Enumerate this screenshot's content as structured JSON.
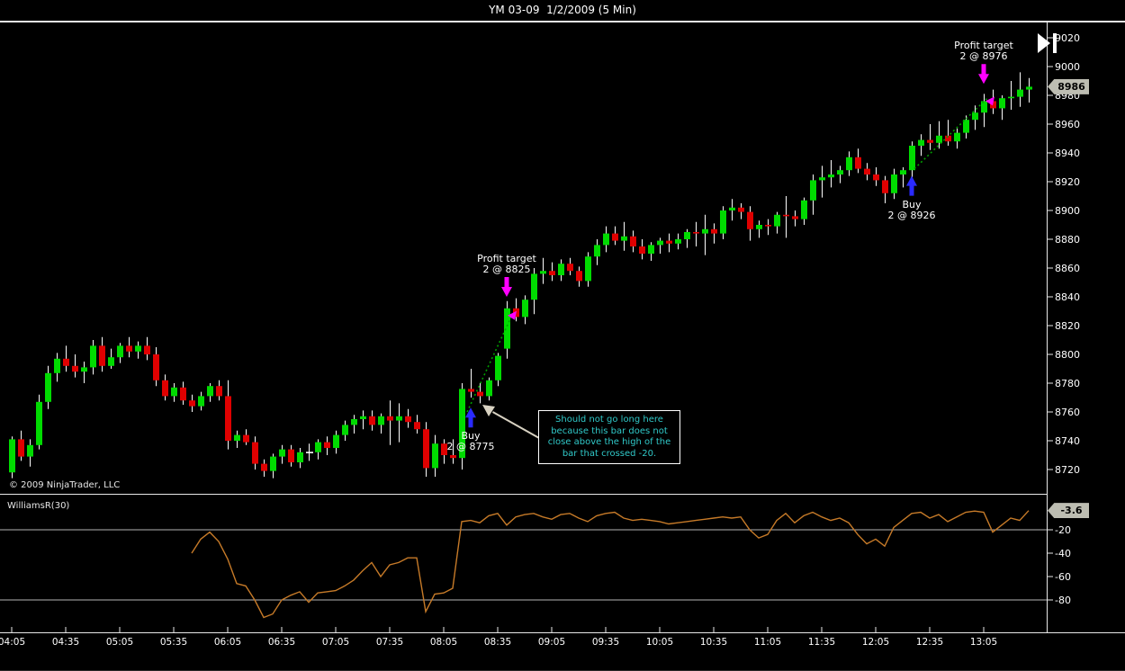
{
  "title_bar": {
    "title": "YM 03-09  1/2/2009 (5 Min)"
  },
  "colors": {
    "background": "#000000",
    "up_candle": "#00db00",
    "down_candle": "#e00000",
    "wick": "#ffffff",
    "axis": "#e8e8e8",
    "grid": "#b4b4b4",
    "indicator_line": "#c67a28",
    "trend_line": "#00a000",
    "buy_arrow": "#2a2aff",
    "target_arrow": "#ff00ff",
    "note_text": "#30c9c9",
    "note_arrow": "#d8d2c2",
    "badge_bg": "#bdbdb2"
  },
  "chart_data": {
    "type": "candlestick",
    "title": "YM 03-09  1/2/2009 (5 Min)",
    "symbol": "YM 03-09",
    "date": "1/2/2009",
    "interval": "5 Min",
    "start_time": "04:05",
    "interval_minutes": 5,
    "price_ylim": [
      8720,
      9020
    ],
    "price_tick_step": 20,
    "last_price": 8986,
    "x_axis_labels": [
      "04:05",
      "04:35",
      "05:05",
      "05:35",
      "06:05",
      "06:35",
      "07:05",
      "07:35",
      "08:05",
      "08:35",
      "09:05",
      "09:35",
      "10:05",
      "10:35",
      "11:05",
      "11:35",
      "12:05",
      "12:35",
      "13:05"
    ],
    "x_label_every_n_bars": 6,
    "ohlc": [
      [
        8718,
        8743,
        8714,
        8741
      ],
      [
        8741,
        8747,
        8726,
        8729
      ],
      [
        8729,
        8741,
        8722,
        8737
      ],
      [
        8737,
        8772,
        8734,
        8767
      ],
      [
        8767,
        8792,
        8762,
        8787
      ],
      [
        8787,
        8801,
        8781,
        8797
      ],
      [
        8797,
        8806,
        8788,
        8792
      ],
      [
        8792,
        8800,
        8784,
        8788
      ],
      [
        8788,
        8795,
        8780,
        8791
      ],
      [
        8791,
        8810,
        8786,
        8806
      ],
      [
        8806,
        8812,
        8788,
        8792
      ],
      [
        8792,
        8804,
        8790,
        8798
      ],
      [
        8798,
        8808,
        8794,
        8806
      ],
      [
        8806,
        8812,
        8798,
        8802
      ],
      [
        8802,
        8809,
        8797,
        8806
      ],
      [
        8806,
        8812,
        8796,
        8800
      ],
      [
        8800,
        8805,
        8778,
        8782
      ],
      [
        8782,
        8786,
        8768,
        8771
      ],
      [
        8771,
        8780,
        8767,
        8777
      ],
      [
        8777,
        8781,
        8765,
        8768
      ],
      [
        8768,
        8772,
        8760,
        8764
      ],
      [
        8764,
        8774,
        8761,
        8771
      ],
      [
        8771,
        8780,
        8767,
        8778
      ],
      [
        8778,
        8782,
        8768,
        8771
      ],
      [
        8771,
        8782,
        8734,
        8740
      ],
      [
        8740,
        8747,
        8735,
        8744
      ],
      [
        8744,
        8748,
        8737,
        8739
      ],
      [
        8739,
        8743,
        8720,
        8724
      ],
      [
        8724,
        8727,
        8715,
        8719
      ],
      [
        8719,
        8731,
        8714,
        8729
      ],
      [
        8729,
        8737,
        8724,
        8734
      ],
      [
        8734,
        8737,
        8722,
        8725
      ],
      [
        8725,
        8735,
        8721,
        8732
      ],
      [
        8732,
        8738,
        8726,
        8732
      ],
      [
        8732,
        8741,
        8727,
        8739
      ],
      [
        8739,
        8743,
        8730,
        8735
      ],
      [
        8735,
        8747,
        8731,
        8744
      ],
      [
        8744,
        8754,
        8740,
        8751
      ],
      [
        8751,
        8758,
        8745,
        8755
      ],
      [
        8755,
        8761,
        8748,
        8757
      ],
      [
        8757,
        8761,
        8747,
        8751
      ],
      [
        8751,
        8759,
        8745,
        8757
      ],
      [
        8757,
        8768,
        8737,
        8754
      ],
      [
        8754,
        8766,
        8739,
        8757
      ],
      [
        8757,
        8762,
        8749,
        8753
      ],
      [
        8753,
        8758,
        8745,
        8748
      ],
      [
        8748,
        8753,
        8715,
        8721
      ],
      [
        8721,
        8744,
        8715,
        8738
      ],
      [
        8738,
        8741,
        8724,
        8730
      ],
      [
        8730,
        8741,
        8724,
        8728
      ],
      [
        8728,
        8780,
        8720,
        8776
      ],
      [
        8776,
        8790,
        8770,
        8774
      ],
      [
        8774,
        8780,
        8766,
        8771
      ],
      [
        8771,
        8784,
        8768,
        8782
      ],
      [
        8782,
        8801,
        8778,
        8799
      ],
      [
        8804,
        8837,
        8797,
        8832
      ],
      [
        8832,
        8839,
        8823,
        8826
      ],
      [
        8826,
        8841,
        8821,
        8838
      ],
      [
        8838,
        8860,
        8828,
        8856
      ],
      [
        8856,
        8867,
        8849,
        8858
      ],
      [
        8858,
        8864,
        8851,
        8855
      ],
      [
        8855,
        8866,
        8851,
        8863
      ],
      [
        8863,
        8867,
        8855,
        8858
      ],
      [
        8858,
        8861,
        8847,
        8851
      ],
      [
        8851,
        8871,
        8847,
        8868
      ],
      [
        8868,
        8880,
        8862,
        8876
      ],
      [
        8876,
        8889,
        8871,
        8884
      ],
      [
        8884,
        8889,
        8876,
        8879
      ],
      [
        8879,
        8892,
        8872,
        8882
      ],
      [
        8882,
        8886,
        8871,
        8875
      ],
      [
        8875,
        8880,
        8866,
        8870
      ],
      [
        8870,
        8878,
        8865,
        8876
      ],
      [
        8876,
        8881,
        8870,
        8879
      ],
      [
        8879,
        8884,
        8871,
        8877
      ],
      [
        8877,
        8884,
        8873,
        8880
      ],
      [
        8880,
        8887,
        8874,
        8885
      ],
      [
        8885,
        8892,
        8875,
        8884
      ],
      [
        8884,
        8897,
        8869,
        8887
      ],
      [
        8887,
        8891,
        8877,
        8884
      ],
      [
        8884,
        8903,
        8880,
        8900
      ],
      [
        8900,
        8908,
        8893,
        8902
      ],
      [
        8902,
        8905,
        8894,
        8899
      ],
      [
        8899,
        8903,
        8879,
        8887
      ],
      [
        8887,
        8893,
        8881,
        8890
      ],
      [
        8890,
        8894,
        8883,
        8889
      ],
      [
        8889,
        8899,
        8884,
        8897
      ],
      [
        8897,
        8910,
        8881,
        8896
      ],
      [
        8896,
        8900,
        8889,
        8894
      ],
      [
        8894,
        8909,
        8890,
        8907
      ],
      [
        8907,
        8925,
        8897,
        8921
      ],
      [
        8921,
        8931,
        8909,
        8923
      ],
      [
        8923,
        8935,
        8916,
        8925
      ],
      [
        8925,
        8931,
        8919,
        8928
      ],
      [
        8928,
        8941,
        8924,
        8937
      ],
      [
        8937,
        8943,
        8926,
        8929
      ],
      [
        8929,
        8933,
        8921,
        8925
      ],
      [
        8925,
        8930,
        8917,
        8921
      ],
      [
        8921,
        8924,
        8905,
        8912
      ],
      [
        8912,
        8929,
        8908,
        8925
      ],
      [
        8925,
        8930,
        8916,
        8928
      ],
      [
        8928,
        8948,
        8922,
        8945
      ],
      [
        8945,
        8953,
        8938,
        8949
      ],
      [
        8949,
        8960,
        8942,
        8947
      ],
      [
        8947,
        8962,
        8943,
        8952
      ],
      [
        8952,
        8963,
        8945,
        8948
      ],
      [
        8948,
        8957,
        8943,
        8954
      ],
      [
        8954,
        8966,
        8950,
        8963
      ],
      [
        8963,
        8973,
        8956,
        8968
      ],
      [
        8968,
        8981,
        8958,
        8976
      ],
      [
        8976,
        8984,
        8967,
        8971
      ],
      [
        8971,
        8980,
        8963,
        8978
      ],
      [
        8978,
        8990,
        8970,
        8979
      ],
      [
        8979,
        8996,
        8972,
        8984
      ],
      [
        8984,
        8992,
        8975,
        8986
      ]
    ],
    "indicator": {
      "type": "line",
      "name": "WilliamsR(30)",
      "ylim": [
        0,
        -100
      ],
      "gridlines": [
        -20,
        -80
      ],
      "axis_ticks": [
        -20,
        -40,
        -60,
        -80
      ],
      "last_value": -3.6,
      "start_bar_index": 20,
      "values": [
        -40,
        -28,
        -22,
        -30,
        -45,
        -66,
        -68,
        -80,
        -95,
        -92,
        -80,
        -76,
        -73,
        -82,
        -74,
        -73,
        -72,
        -68,
        -63,
        -55,
        -48,
        -60,
        -50,
        -48,
        -44,
        -44,
        -90,
        -75,
        -74,
        -70,
        -13,
        -12,
        -14,
        -8,
        -6,
        -16,
        -9,
        -7,
        -6,
        -9,
        -11,
        -7,
        -6,
        -10,
        -13,
        -8,
        -6,
        -5,
        -10,
        -12,
        -11,
        -12,
        -13,
        -15,
        -14,
        -13,
        -12,
        -11,
        -10,
        -9,
        -10,
        -9,
        -20,
        -27,
        -24,
        -12,
        -6,
        -14,
        -8,
        -5,
        -9,
        -12,
        -10,
        -14,
        -24,
        -32,
        -28,
        -34,
        -18,
        -12,
        -6,
        -5,
        -10,
        -7,
        -13,
        -9,
        -5,
        -4,
        -5,
        -22,
        -16,
        -10,
        -12,
        -3.6
      ]
    }
  },
  "annotations": {
    "copyright": "© 2009 NinjaTrader, LLC",
    "trades": [
      {
        "side": "buy",
        "lines": "Buy\n2 @ 8775",
        "bar_index": 51,
        "arrow_tip_price": 8763
      },
      {
        "side": "profit_target",
        "lines": "Profit target\n2 @ 8825",
        "bar_index": 55,
        "arrow_tip_price": 8840,
        "mini_marker": {
          "bar_index": 55.6,
          "price": 8827
        }
      },
      {
        "side": "buy",
        "lines": "Buy\n2 @ 8926",
        "bar_index": 100,
        "arrow_tip_price": 8924
      },
      {
        "side": "profit_target",
        "lines": "Profit target\n2 @ 8976",
        "bar_index": 108,
        "arrow_tip_price": 8988,
        "mini_marker": {
          "bar_index": 108.7,
          "price": 8976
        }
      }
    ],
    "trend_lines": [
      {
        "from": {
          "bar": 50.6,
          "price": 8760
        },
        "to": {
          "bar": 55.5,
          "price": 8826
        }
      },
      {
        "from": {
          "bar": 100.3,
          "price": 8929
        },
        "to": {
          "bar": 108.4,
          "price": 8978
        }
      }
    ],
    "note": {
      "text": "Should not go long here because this bar does not close above the high of the bar that crossed -20.",
      "arrow_tail": [
        599,
        487
      ],
      "arrow_head": [
        536,
        451
      ]
    }
  }
}
